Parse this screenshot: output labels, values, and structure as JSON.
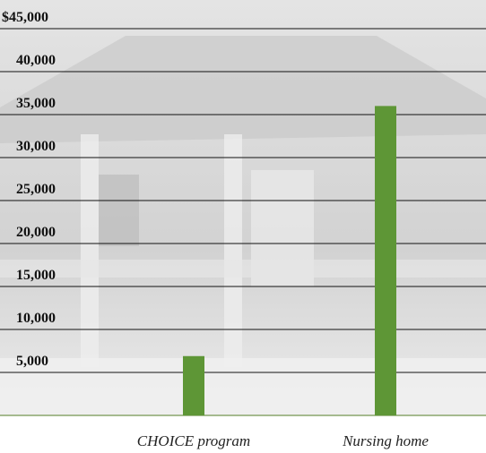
{
  "chart_data": {
    "type": "bar",
    "categories": [
      "CHOICE program",
      "Nursing home"
    ],
    "values": [
      6900,
      36000
    ],
    "color": "#5e9636",
    "ylim": [
      0,
      45000
    ],
    "yticks": [
      {
        "value": 5000,
        "label": "5,000"
      },
      {
        "value": 10000,
        "label": "10,000"
      },
      {
        "value": 15000,
        "label": "15,000"
      },
      {
        "value": 20000,
        "label": "20,000"
      },
      {
        "value": 25000,
        "label": "25,000"
      },
      {
        "value": 30000,
        "label": "30,000"
      },
      {
        "value": 35000,
        "label": "35,000"
      },
      {
        "value": 40000,
        "label": "40,000"
      },
      {
        "value": 45000,
        "label": "$45,000"
      }
    ],
    "grid": true
  }
}
